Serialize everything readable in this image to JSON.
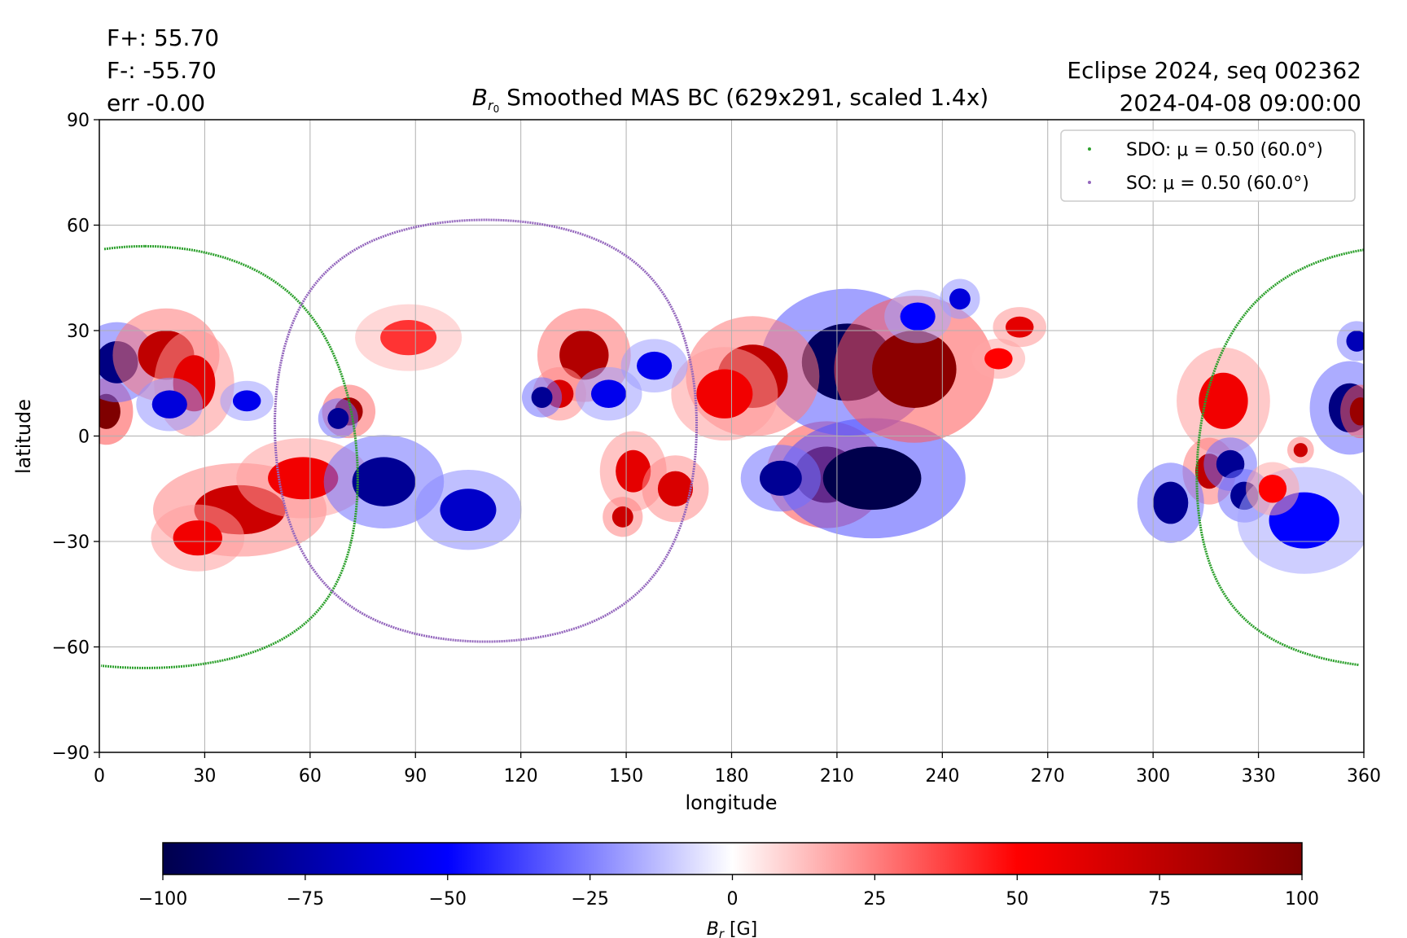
{
  "header": {
    "stat_lines": [
      "F+: 55.70",
      "F-: -55.70",
      "err -0.00"
    ],
    "eclipse_lines": [
      "Eclipse 2024, seq 002362",
      "2024-04-08 09:00:00"
    ],
    "title_symbol": "B",
    "title_subscript": "r",
    "title_subsubscript": "0",
    "title_rest": " Smoothed MAS BC (629x291, scaled 1.4x)"
  },
  "chart_data": {
    "type": "heatmap",
    "xlabel": "longitude",
    "ylabel": "latitude",
    "xlim": [
      0,
      360
    ],
    "ylim": [
      -90,
      90
    ],
    "xticks": [
      0,
      30,
      60,
      90,
      120,
      150,
      180,
      210,
      240,
      270,
      300,
      330,
      360
    ],
    "yticks": [
      -90,
      -60,
      -30,
      0,
      30,
      60,
      90
    ],
    "grid": true,
    "legend_location": "top-right",
    "colormap": {
      "name": "seismic",
      "vmin": -100,
      "vmax": 100,
      "ticks": [
        -100,
        -75,
        -50,
        -25,
        0,
        25,
        50,
        75,
        100
      ],
      "label_symbol": "B",
      "label_subscript": "r",
      "label_unit": " [G]",
      "stops": [
        "#00004c",
        "#0000ff",
        "#ffffff",
        "#ff0000",
        "#7f0000"
      ]
    },
    "curves": [
      {
        "name": "SDO",
        "legend_label": "SDO: μ = 0.50 (60.0°)",
        "color": "#2ca02c",
        "center_lon": 13,
        "center_lat": -6,
        "radius_deg": 60
      },
      {
        "name": "SO",
        "legend_label": "SO: μ = 0.50 (60.0°)",
        "color": "#9467bd",
        "center_lon": 110,
        "center_lat": 1.5,
        "radius_deg": 60
      }
    ],
    "magnetic_regions": [
      {
        "lon": 207,
        "lat": -11,
        "field": 100,
        "w": 9,
        "h": 8
      },
      {
        "lon": 220,
        "lat": -12,
        "field": -100,
        "w": 14,
        "h": 9
      },
      {
        "lon": 213,
        "lat": 21,
        "field": -95,
        "w": 13,
        "h": 11
      },
      {
        "lon": 232,
        "lat": 19,
        "field": 95,
        "w": 12,
        "h": 11
      },
      {
        "lon": 186,
        "lat": 17,
        "field": 75,
        "w": 10,
        "h": 9
      },
      {
        "lon": 178,
        "lat": 12,
        "field": 55,
        "w": 8,
        "h": 7
      },
      {
        "lon": 194,
        "lat": -12,
        "field": -80,
        "w": 6,
        "h": 5
      },
      {
        "lon": 2,
        "lat": 7,
        "field": 100,
        "w": 4,
        "h": 5
      },
      {
        "lon": 5,
        "lat": 21,
        "field": -85,
        "w": 6,
        "h": 6
      },
      {
        "lon": 19,
        "lat": 23,
        "field": 75,
        "w": 8,
        "h": 7
      },
      {
        "lon": 27,
        "lat": 15,
        "field": 60,
        "w": 6,
        "h": 8
      },
      {
        "lon": 20,
        "lat": 9,
        "field": -60,
        "w": 5,
        "h": 4
      },
      {
        "lon": 40,
        "lat": -21,
        "field": 70,
        "w": 13,
        "h": 7
      },
      {
        "lon": 28,
        "lat": -29,
        "field": 55,
        "w": 7,
        "h": 5
      },
      {
        "lon": 58,
        "lat": -12,
        "field": 55,
        "w": 10,
        "h": 6
      },
      {
        "lon": 81,
        "lat": -13,
        "field": -80,
        "w": 9,
        "h": 7
      },
      {
        "lon": 71,
        "lat": 7,
        "field": 85,
        "w": 4,
        "h": 4
      },
      {
        "lon": 68,
        "lat": 5,
        "field": -80,
        "w": 3,
        "h": 3
      },
      {
        "lon": 105,
        "lat": -21,
        "field": -65,
        "w": 8,
        "h": 6
      },
      {
        "lon": 138,
        "lat": 23,
        "field": 80,
        "w": 7,
        "h": 7
      },
      {
        "lon": 131,
        "lat": 12,
        "field": 65,
        "w": 4,
        "h": 4
      },
      {
        "lon": 126,
        "lat": 11,
        "field": -80,
        "w": 3,
        "h": 3
      },
      {
        "lon": 145,
        "lat": 12,
        "field": -55,
        "w": 5,
        "h": 4
      },
      {
        "lon": 152,
        "lat": -10,
        "field": 60,
        "w": 5,
        "h": 6
      },
      {
        "lon": 164,
        "lat": -15,
        "field": 65,
        "w": 5,
        "h": 5
      },
      {
        "lon": 158,
        "lat": 20,
        "field": -55,
        "w": 5,
        "h": 4
      },
      {
        "lon": 149,
        "lat": -23,
        "field": 70,
        "w": 3,
        "h": 3
      },
      {
        "lon": 262,
        "lat": 31,
        "field": 60,
        "w": 4,
        "h": 3
      },
      {
        "lon": 256,
        "lat": 22,
        "field": 50,
        "w": 4,
        "h": 3
      },
      {
        "lon": 320,
        "lat": 10,
        "field": 55,
        "w": 7,
        "h": 8
      },
      {
        "lon": 316,
        "lat": -10,
        "field": 75,
        "w": 4,
        "h": 5
      },
      {
        "lon": 322,
        "lat": -8,
        "field": -80,
        "w": 4,
        "h": 4
      },
      {
        "lon": 326,
        "lat": -17,
        "field": -80,
        "w": 4,
        "h": 4
      },
      {
        "lon": 305,
        "lat": -19,
        "field": -80,
        "w": 5,
        "h": 6
      },
      {
        "lon": 356,
        "lat": 8,
        "field": -85,
        "w": 6,
        "h": 7
      },
      {
        "lon": 359,
        "lat": 7,
        "field": 90,
        "w": 3,
        "h": 4
      },
      {
        "lon": 358,
        "lat": 27,
        "field": -70,
        "w": 3,
        "h": 3
      },
      {
        "lon": 343,
        "lat": -24,
        "field": -50,
        "w": 10,
        "h": 8
      },
      {
        "lon": 334,
        "lat": -15,
        "field": 50,
        "w": 4,
        "h": 4
      },
      {
        "lon": 342,
        "lat": -4,
        "field": 70,
        "w": 2,
        "h": 2
      },
      {
        "lon": 245,
        "lat": 39,
        "field": -60,
        "w": 3,
        "h": 3
      },
      {
        "lon": 233,
        "lat": 34,
        "field": -50,
        "w": 5,
        "h": 4
      },
      {
        "lon": 88,
        "lat": 28,
        "field": 40,
        "w": 8,
        "h": 5
      },
      {
        "lon": 42,
        "lat": 10,
        "field": -55,
        "w": 4,
        "h": 3
      }
    ]
  }
}
